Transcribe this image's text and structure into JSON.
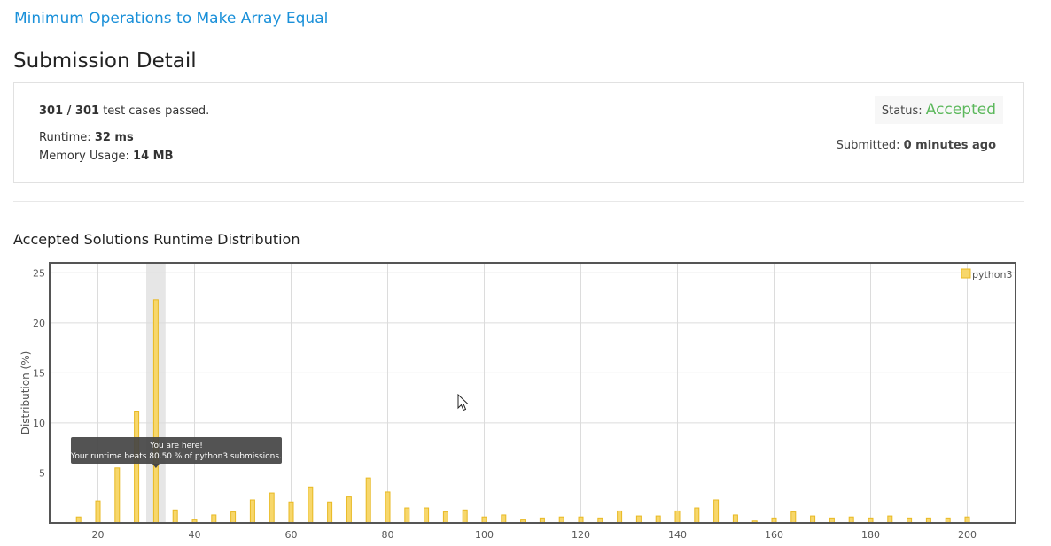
{
  "problem": {
    "title": "Minimum Operations to Make Array Equal"
  },
  "page": {
    "title": "Submission Detail"
  },
  "summary": {
    "passed": "301 / 301",
    "passed_suffix": " test cases passed.",
    "runtime_label": "Runtime: ",
    "runtime_value": "32 ms",
    "memory_label": "Memory Usage: ",
    "memory_value": "14 MB",
    "status_label": "Status: ",
    "status_value": "Accepted",
    "status_color": "#5cb85c",
    "submitted_label": "Submitted: ",
    "submitted_value": "0 minutes ago"
  },
  "distribution": {
    "title": "Accepted Solutions Runtime Distribution"
  },
  "chart_data": {
    "type": "bar",
    "title": "",
    "xlabel": "",
    "ylabel": "Distribution (%)",
    "xlim": [
      10,
      210
    ],
    "ylim": [
      0,
      26
    ],
    "xticks": [
      20,
      40,
      60,
      80,
      100,
      120,
      140,
      160,
      180,
      200
    ],
    "yticks": [
      5,
      10,
      15,
      20,
      25
    ],
    "grid": true,
    "legend_position": "top-right",
    "bar_color": "#f7d76b",
    "bar_edge_color": "#e8b923",
    "series": [
      {
        "name": "python3",
        "x": [
          16,
          20,
          24,
          28,
          32,
          36,
          40,
          44,
          48,
          52,
          56,
          60,
          64,
          68,
          72,
          76,
          80,
          84,
          88,
          92,
          96,
          100,
          104,
          108,
          112,
          116,
          120,
          124,
          128,
          132,
          136,
          140,
          144,
          148,
          152,
          156,
          160,
          164,
          168,
          172,
          176,
          180,
          184,
          188,
          192,
          196,
          200
        ],
        "values": [
          0.6,
          2.2,
          5.5,
          11.1,
          22.3,
          1.3,
          0.3,
          0.8,
          1.1,
          2.3,
          3.0,
          2.1,
          3.6,
          2.1,
          2.6,
          4.5,
          3.1,
          1.5,
          1.5,
          1.1,
          1.3,
          0.6,
          0.8,
          0.3,
          0.5,
          0.6,
          0.6,
          0.5,
          1.2,
          0.7,
          0.7,
          1.2,
          1.5,
          2.3,
          0.8,
          0.2,
          0.5,
          1.1,
          0.7,
          0.5,
          0.6,
          0.5,
          0.7,
          0.5,
          0.5,
          0.5,
          0.6
        ]
      }
    ],
    "highlight": {
      "x_range": [
        30,
        34
      ]
    },
    "tooltip": {
      "line1": "You are here!",
      "line2": "Your runtime beats 80.50 % of python3 submissions."
    }
  }
}
